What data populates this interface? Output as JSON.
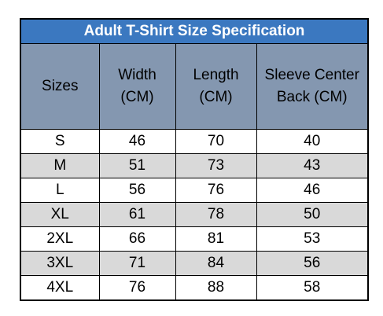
{
  "table": {
    "title": "Adult T-Shirt Size Specification",
    "header": [
      [
        "Sizes"
      ],
      [
        "Width",
        "(CM)"
      ],
      [
        "Length",
        "(CM)"
      ],
      [
        "Sleeve Center",
        "Back (CM)"
      ]
    ],
    "rows": [
      [
        "S",
        46,
        70,
        40
      ],
      [
        "M",
        51,
        73,
        43
      ],
      [
        "L",
        56,
        76,
        46
      ],
      [
        "XL",
        61,
        78,
        50
      ],
      [
        "2XL",
        66,
        81,
        53
      ],
      [
        "3XL",
        71,
        84,
        56
      ],
      [
        "4XL",
        76,
        88,
        58
      ]
    ]
  }
}
